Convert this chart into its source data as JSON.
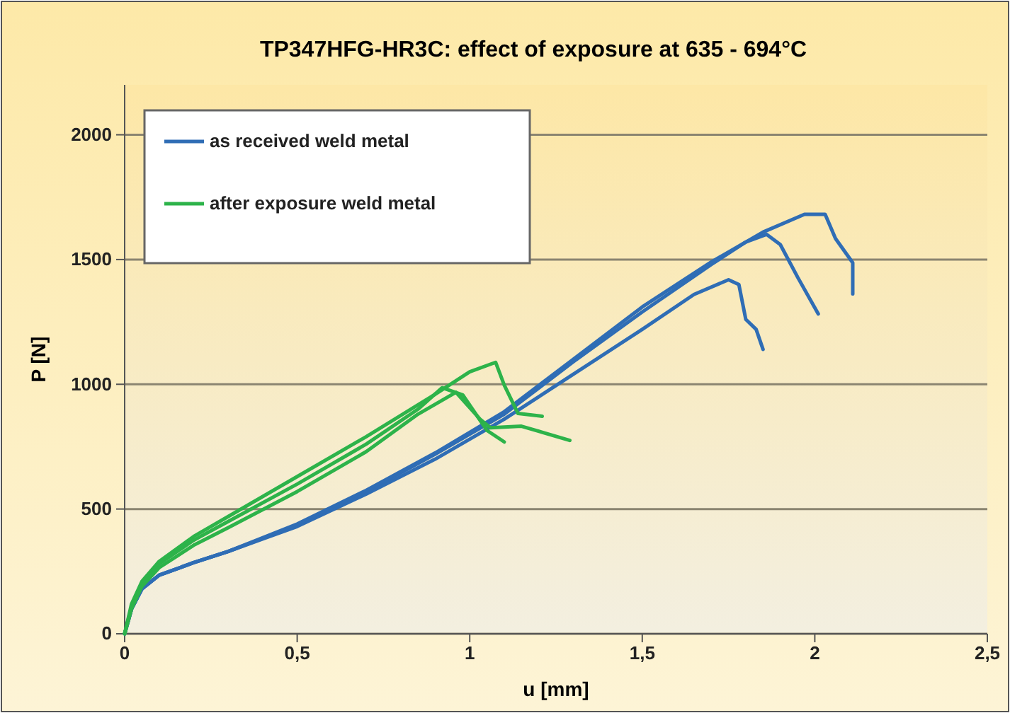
{
  "chart_data": {
    "type": "line",
    "title": "TP347HFG-HR3C: effect of exposure at 635 - 694°C",
    "xlabel": "u [mm]",
    "ylabel": "P [N]",
    "xlim": [
      0,
      2.5
    ],
    "ylim": [
      0,
      2200
    ],
    "xticks": [
      0,
      {
        "value": 0.5,
        "label": "0,5"
      },
      1,
      {
        "value": 1.5,
        "label": "1,5"
      },
      2,
      {
        "value": 2.5,
        "label": "2,5"
      }
    ],
    "yticks": [
      0,
      500,
      1000,
      1500,
      2000
    ],
    "grid": "y",
    "legend": "top left",
    "marker": "none",
    "line_style": "solid",
    "series": [
      {
        "name": "as received weld metal",
        "color": "#2f6db5",
        "x": [
          0,
          0.02,
          0.05,
          0.1,
          0.2,
          0.3,
          0.5,
          0.7,
          0.9,
          1.1,
          1.3,
          1.5,
          1.65,
          1.75,
          1.78,
          1.8,
          1.83,
          1.85
        ],
        "values": [
          0,
          100,
          180,
          235,
          285,
          330,
          430,
          560,
          700,
          860,
          1040,
          1220,
          1360,
          1419,
          1400,
          1260,
          1220,
          1140
        ]
      },
      {
        "color": "#2f6db5",
        "x": [
          0,
          0.02,
          0.05,
          0.1,
          0.2,
          0.3,
          0.5,
          0.7,
          0.9,
          1.1,
          1.3,
          1.5,
          1.7,
          1.8,
          1.86,
          1.9,
          1.95,
          2.01
        ],
        "values": [
          0,
          100,
          180,
          235,
          285,
          330,
          435,
          570,
          720,
          880,
          1090,
          1290,
          1480,
          1570,
          1601,
          1560,
          1430,
          1282
        ]
      },
      {
        "color": "#2f6db5",
        "x": [
          0,
          0.02,
          0.05,
          0.1,
          0.2,
          0.3,
          0.5,
          0.7,
          0.9,
          1.1,
          1.3,
          1.5,
          1.7,
          1.85,
          1.97,
          2.03,
          2.06,
          2.11,
          2.11
        ],
        "values": [
          0,
          100,
          180,
          235,
          285,
          330,
          440,
          575,
          725,
          890,
          1100,
          1310,
          1490,
          1610,
          1681,
          1681,
          1584,
          1487,
          1362
        ]
      },
      {
        "name": "after exposure weld metal",
        "color": "#2db34a",
        "x": [
          0,
          0.02,
          0.05,
          0.1,
          0.2,
          0.3,
          0.5,
          0.7,
          0.9,
          1,
          1.075,
          1.1,
          1.14,
          1.21
        ],
        "values": [
          0,
          120,
          210,
          290,
          390,
          470,
          630,
          790,
          960,
          1050,
          1088,
          997,
          883,
          872
        ]
      },
      {
        "color": "#2db34a",
        "x": [
          0,
          0.02,
          0.05,
          0.1,
          0.2,
          0.3,
          0.5,
          0.7,
          0.85,
          0.92,
          0.98,
          1.05,
          1.1
        ],
        "values": [
          0,
          110,
          200,
          280,
          375,
          450,
          600,
          760,
          900,
          986,
          957,
          815,
          769
        ]
      },
      {
        "color": "#2db34a",
        "x": [
          0,
          0.02,
          0.05,
          0.1,
          0.2,
          0.3,
          0.5,
          0.7,
          0.85,
          0.96,
          1.03,
          1.06,
          1.15,
          1.29
        ],
        "values": [
          0,
          100,
          190,
          265,
          355,
          425,
          570,
          730,
          880,
          968,
          860,
          826,
          832,
          775
        ]
      }
    ]
  }
}
